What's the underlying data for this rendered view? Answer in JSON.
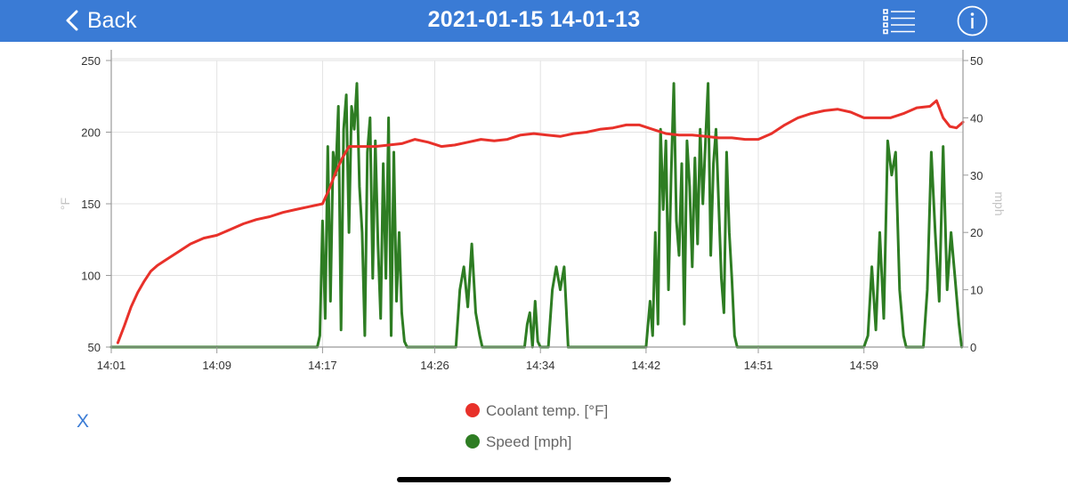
{
  "header": {
    "back_label": "Back",
    "title": "2021-01-15 14-01-13",
    "list_icon": "list-icon",
    "info_icon": "info-icon",
    "background": "#3a7bd5"
  },
  "footer": {
    "close_label": "X"
  },
  "chart_data": {
    "type": "line",
    "x_ticks": [
      "14:01",
      "14:09",
      "14:17",
      "14:26",
      "14:34",
      "14:42",
      "14:51",
      "14:59"
    ],
    "x_tick_minutes": [
      0,
      8,
      16,
      24.5,
      32.5,
      40.5,
      49,
      57
    ],
    "x_range_minutes": [
      0,
      64.5
    ],
    "y_left": {
      "label": "°F",
      "ticks": [
        50,
        100,
        150,
        200,
        250
      ],
      "range": [
        50,
        250
      ]
    },
    "y_right": {
      "label": "mph",
      "ticks": [
        0,
        10,
        20,
        30,
        40,
        50
      ],
      "range": [
        0,
        50
      ]
    },
    "grid": true,
    "legend_position": "bottom",
    "series": [
      {
        "name": "Coolant temp. [°F]",
        "axis": "left",
        "color": "#e8312a",
        "points": [
          [
            0.5,
            53
          ],
          [
            1,
            65
          ],
          [
            1.5,
            78
          ],
          [
            2,
            88
          ],
          [
            2.5,
            96
          ],
          [
            3,
            103
          ],
          [
            3.5,
            107
          ],
          [
            4,
            110
          ],
          [
            5,
            116
          ],
          [
            6,
            122
          ],
          [
            7,
            126
          ],
          [
            8,
            128
          ],
          [
            9,
            132
          ],
          [
            10,
            136
          ],
          [
            11,
            139
          ],
          [
            12,
            141
          ],
          [
            13,
            144
          ],
          [
            14,
            146
          ],
          [
            15,
            148
          ],
          [
            16,
            150
          ],
          [
            16.5,
            160
          ],
          [
            17,
            172
          ],
          [
            17.5,
            182
          ],
          [
            18,
            190
          ],
          [
            19,
            190
          ],
          [
            20,
            190
          ],
          [
            21,
            191
          ],
          [
            22,
            192
          ],
          [
            23,
            195
          ],
          [
            24,
            193
          ],
          [
            25,
            190
          ],
          [
            26,
            191
          ],
          [
            27,
            193
          ],
          [
            28,
            195
          ],
          [
            29,
            194
          ],
          [
            30,
            195
          ],
          [
            31,
            198
          ],
          [
            32,
            199
          ],
          [
            33,
            198
          ],
          [
            34,
            197
          ],
          [
            35,
            199
          ],
          [
            36,
            200
          ],
          [
            37,
            202
          ],
          [
            38,
            203
          ],
          [
            39,
            205
          ],
          [
            40,
            205
          ],
          [
            41,
            202
          ],
          [
            42,
            199
          ],
          [
            43,
            198
          ],
          [
            44,
            198
          ],
          [
            45,
            197
          ],
          [
            46,
            196
          ],
          [
            47,
            196
          ],
          [
            48,
            195
          ],
          [
            49,
            195
          ],
          [
            50,
            199
          ],
          [
            51,
            205
          ],
          [
            52,
            210
          ],
          [
            53,
            213
          ],
          [
            54,
            215
          ],
          [
            55,
            216
          ],
          [
            56,
            214
          ],
          [
            57,
            210
          ],
          [
            58,
            210
          ],
          [
            59,
            210
          ],
          [
            60,
            213
          ],
          [
            61,
            217
          ],
          [
            62,
            218
          ],
          [
            62.5,
            222
          ],
          [
            63,
            210
          ],
          [
            63.5,
            204
          ],
          [
            64,
            203
          ],
          [
            64.5,
            207
          ]
        ]
      },
      {
        "name": "Speed [mph]",
        "axis": "right",
        "color": "#2e7d23",
        "points": [
          [
            0,
            0
          ],
          [
            15.6,
            0
          ],
          [
            15.8,
            2
          ],
          [
            16.0,
            22
          ],
          [
            16.2,
            5
          ],
          [
            16.4,
            35
          ],
          [
            16.6,
            8
          ],
          [
            16.8,
            34
          ],
          [
            17.0,
            30
          ],
          [
            17.2,
            42
          ],
          [
            17.4,
            3
          ],
          [
            17.6,
            38
          ],
          [
            17.8,
            44
          ],
          [
            18.0,
            20
          ],
          [
            18.2,
            42
          ],
          [
            18.4,
            38
          ],
          [
            18.6,
            46
          ],
          [
            18.8,
            28
          ],
          [
            19.0,
            20
          ],
          [
            19.2,
            2
          ],
          [
            19.4,
            34
          ],
          [
            19.6,
            40
          ],
          [
            19.8,
            12
          ],
          [
            20.0,
            36
          ],
          [
            20.2,
            18
          ],
          [
            20.4,
            5
          ],
          [
            20.6,
            32
          ],
          [
            20.8,
            12
          ],
          [
            21.0,
            40
          ],
          [
            21.2,
            2
          ],
          [
            21.4,
            34
          ],
          [
            21.6,
            8
          ],
          [
            21.8,
            20
          ],
          [
            22.0,
            6
          ],
          [
            22.2,
            1
          ],
          [
            22.4,
            0
          ],
          [
            26.1,
            0
          ],
          [
            26.4,
            10
          ],
          [
            26.7,
            14
          ],
          [
            27.0,
            7
          ],
          [
            27.3,
            18
          ],
          [
            27.6,
            6
          ],
          [
            27.9,
            2
          ],
          [
            28.1,
            0
          ],
          [
            31.3,
            0
          ],
          [
            31.5,
            4
          ],
          [
            31.7,
            6
          ],
          [
            31.9,
            0
          ],
          [
            32.1,
            8
          ],
          [
            32.3,
            1
          ],
          [
            32.5,
            0
          ],
          [
            33.1,
            0
          ],
          [
            33.4,
            10
          ],
          [
            33.7,
            14
          ],
          [
            34.0,
            10
          ],
          [
            34.3,
            14
          ],
          [
            34.6,
            0
          ],
          [
            40.5,
            0
          ],
          [
            40.8,
            8
          ],
          [
            41.0,
            2
          ],
          [
            41.2,
            20
          ],
          [
            41.4,
            4
          ],
          [
            41.6,
            38
          ],
          [
            41.8,
            24
          ],
          [
            42.0,
            36
          ],
          [
            42.2,
            10
          ],
          [
            42.4,
            30
          ],
          [
            42.6,
            46
          ],
          [
            42.8,
            22
          ],
          [
            43.0,
            16
          ],
          [
            43.2,
            32
          ],
          [
            43.4,
            4
          ],
          [
            43.6,
            36
          ],
          [
            43.8,
            28
          ],
          [
            44.0,
            14
          ],
          [
            44.2,
            33
          ],
          [
            44.4,
            18
          ],
          [
            44.6,
            38
          ],
          [
            44.8,
            25
          ],
          [
            45.0,
            36
          ],
          [
            45.2,
            46
          ],
          [
            45.4,
            16
          ],
          [
            45.6,
            32
          ],
          [
            45.8,
            38
          ],
          [
            46.0,
            25
          ],
          [
            46.2,
            12
          ],
          [
            46.4,
            6
          ],
          [
            46.6,
            34
          ],
          [
            46.8,
            20
          ],
          [
            47.0,
            12
          ],
          [
            47.2,
            2
          ],
          [
            47.4,
            0
          ],
          [
            57.0,
            0
          ],
          [
            57.3,
            2
          ],
          [
            57.6,
            14
          ],
          [
            57.9,
            3
          ],
          [
            58.2,
            20
          ],
          [
            58.5,
            5
          ],
          [
            58.8,
            36
          ],
          [
            59.1,
            30
          ],
          [
            59.4,
            34
          ],
          [
            59.7,
            10
          ],
          [
            60.0,
            2
          ],
          [
            60.2,
            0
          ],
          [
            61.5,
            0
          ],
          [
            61.8,
            10
          ],
          [
            62.1,
            34
          ],
          [
            62.4,
            20
          ],
          [
            62.7,
            8
          ],
          [
            63.0,
            35
          ],
          [
            63.3,
            10
          ],
          [
            63.6,
            20
          ],
          [
            63.9,
            12
          ],
          [
            64.2,
            4
          ],
          [
            64.4,
            0
          ]
        ]
      }
    ]
  }
}
